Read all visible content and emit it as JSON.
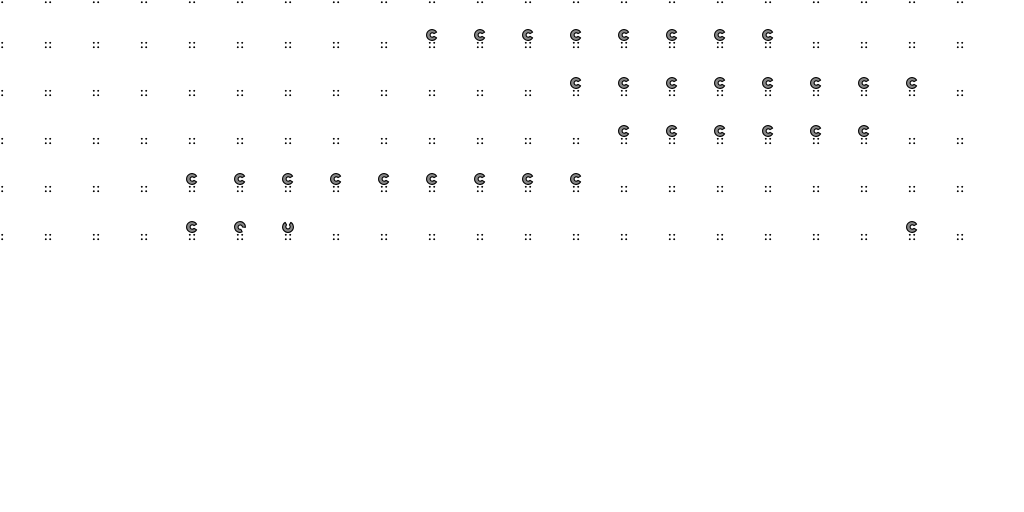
{
  "board": {
    "background_color": "#ffffff",
    "marker_color": "#000000",
    "piece_fill": "#8a8a8a",
    "piece_stroke": "#000000",
    "marker_icon": "crosshair-dot-icon",
    "piece_icon": "c-shaped-piece-icon",
    "grid_columns": 21,
    "grid_rows": 5,
    "visible_top_partial_row": true
  },
  "pieces": [
    {
      "row": 0,
      "col": 9,
      "orientation": "right"
    },
    {
      "row": 0,
      "col": 10,
      "orientation": "right"
    },
    {
      "row": 0,
      "col": 11,
      "orientation": "right"
    },
    {
      "row": 0,
      "col": 12,
      "orientation": "right"
    },
    {
      "row": 0,
      "col": 13,
      "orientation": "right"
    },
    {
      "row": 0,
      "col": 14,
      "orientation": "right"
    },
    {
      "row": 0,
      "col": 15,
      "orientation": "right"
    },
    {
      "row": 0,
      "col": 16,
      "orientation": "right"
    },
    {
      "row": 1,
      "col": 12,
      "orientation": "right"
    },
    {
      "row": 1,
      "col": 13,
      "orientation": "right"
    },
    {
      "row": 1,
      "col": 14,
      "orientation": "right"
    },
    {
      "row": 1,
      "col": 15,
      "orientation": "right"
    },
    {
      "row": 1,
      "col": 16,
      "orientation": "right"
    },
    {
      "row": 1,
      "col": 17,
      "orientation": "right"
    },
    {
      "row": 1,
      "col": 18,
      "orientation": "right"
    },
    {
      "row": 1,
      "col": 19,
      "orientation": "right"
    },
    {
      "row": 2,
      "col": 13,
      "orientation": "right"
    },
    {
      "row": 2,
      "col": 14,
      "orientation": "right"
    },
    {
      "row": 2,
      "col": 15,
      "orientation": "right"
    },
    {
      "row": 2,
      "col": 16,
      "orientation": "right"
    },
    {
      "row": 2,
      "col": 17,
      "orientation": "right"
    },
    {
      "row": 2,
      "col": 18,
      "orientation": "right"
    },
    {
      "row": 3,
      "col": 4,
      "orientation": "right"
    },
    {
      "row": 3,
      "col": 5,
      "orientation": "right"
    },
    {
      "row": 3,
      "col": 6,
      "orientation": "right"
    },
    {
      "row": 3,
      "col": 7,
      "orientation": "right"
    },
    {
      "row": 3,
      "col": 8,
      "orientation": "right"
    },
    {
      "row": 3,
      "col": 9,
      "orientation": "right"
    },
    {
      "row": 3,
      "col": 10,
      "orientation": "right"
    },
    {
      "row": 3,
      "col": 11,
      "orientation": "right"
    },
    {
      "row": 3,
      "col": 12,
      "orientation": "right"
    },
    {
      "row": 4,
      "col": 4,
      "orientation": "right"
    },
    {
      "row": 4,
      "col": 5,
      "orientation": "diagonal"
    },
    {
      "row": 4,
      "col": 6,
      "orientation": "up"
    },
    {
      "row": 4,
      "col": 19,
      "orientation": "right"
    }
  ]
}
